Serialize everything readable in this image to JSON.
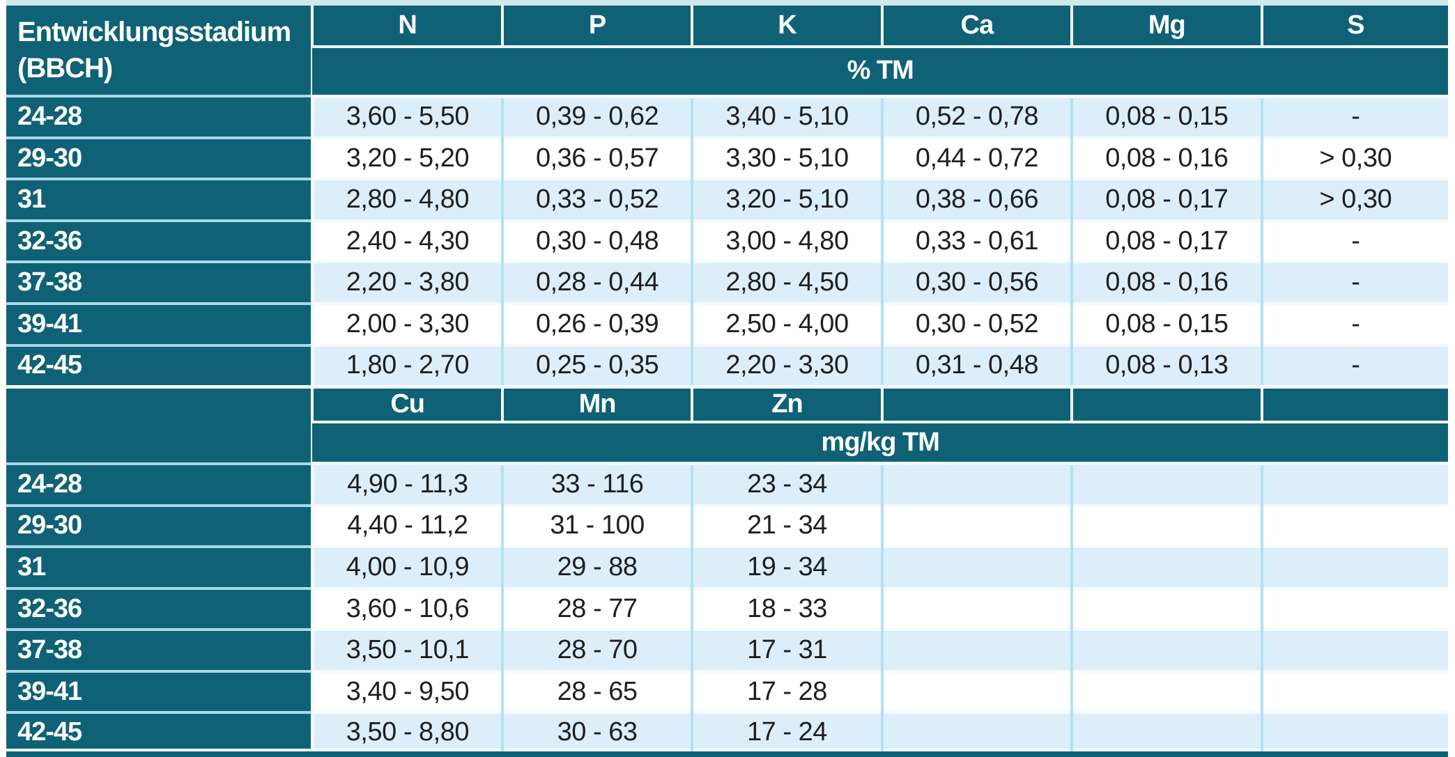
{
  "chart_data": {
    "type": "table",
    "row_label_header": "Entwicklungsstadium (BBCH)",
    "sections": [
      {
        "columns": [
          "N",
          "P",
          "K",
          "Ca",
          "Mg",
          "S"
        ],
        "unit": "% TM",
        "rows": [
          {
            "stage": "24-28",
            "values": [
              "3,60 - 5,50",
              "0,39 - 0,62",
              "3,40 - 5,10",
              "0,52 - 0,78",
              "0,08 - 0,15",
              "-"
            ]
          },
          {
            "stage": "29-30",
            "values": [
              "3,20 - 5,20",
              "0,36 - 0,57",
              "3,30 - 5,10",
              "0,44 - 0,72",
              "0,08 - 0,16",
              "> 0,30"
            ]
          },
          {
            "stage": "31",
            "values": [
              "2,80 - 4,80",
              "0,33 - 0,52",
              "3,20 - 5,10",
              "0,38 - 0,66",
              "0,08 - 0,17",
              "> 0,30"
            ]
          },
          {
            "stage": "32-36",
            "values": [
              "2,40 - 4,30",
              "0,30 - 0,48",
              "3,00 - 4,80",
              "0,33 - 0,61",
              "0,08 - 0,17",
              "-"
            ]
          },
          {
            "stage": "37-38",
            "values": [
              "2,20 - 3,80",
              "0,28 - 0,44",
              "2,80 - 4,50",
              "0,30 - 0,56",
              "0,08 - 0,16",
              "-"
            ]
          },
          {
            "stage": "39-41",
            "values": [
              "2,00 - 3,30",
              "0,26 - 0,39",
              "2,50 - 4,00",
              "0,30 - 0,52",
              "0,08 - 0,15",
              "-"
            ]
          },
          {
            "stage": "42-45",
            "values": [
              "1,80 - 2,70",
              "0,25 - 0,35",
              "2,20 - 3,30",
              "0,31 - 0,48",
              "0,08 - 0,13",
              "-"
            ]
          }
        ]
      },
      {
        "columns": [
          "Cu",
          "Mn",
          "Zn",
          "",
          "",
          ""
        ],
        "unit": "mg/kg TM",
        "rows": [
          {
            "stage": "24-28",
            "values": [
              "4,90 - 11,3",
              "33 - 116",
              "23 - 34",
              "",
              "",
              ""
            ]
          },
          {
            "stage": "29-30",
            "values": [
              "4,40 - 11,2",
              "31 - 100",
              "21 - 34",
              "",
              "",
              ""
            ]
          },
          {
            "stage": "31",
            "values": [
              "4,00 - 10,9",
              "29 - 88",
              "19 - 34",
              "",
              "",
              ""
            ]
          },
          {
            "stage": "32-36",
            "values": [
              "3,60 - 10,6",
              "28 - 77",
              "18 - 33",
              "",
              "",
              ""
            ]
          },
          {
            "stage": "37-38",
            "values": [
              "3,50 - 10,1",
              "28 - 70",
              "17 - 31",
              "",
              "",
              ""
            ]
          },
          {
            "stage": "39-41",
            "values": [
              "3,40 - 9,50",
              "28 - 65",
              "17 - 28",
              "",
              "",
              ""
            ]
          },
          {
            "stage": "42-45",
            "values": [
              "3,50 - 8,80",
              "30 - 63",
              "17 - 24",
              "",
              "",
              ""
            ]
          }
        ]
      }
    ]
  },
  "colors": {
    "header_teal": "#0f6276",
    "row_stripe": "#dceef9",
    "row_plain": "#ffffff",
    "grid_vertical": "#b5e1f0",
    "grid_horizontal": "#f2fafd",
    "text_dark": "#1f1f1f",
    "text_light": "#ffffff",
    "top_border": "#cfe8ec"
  }
}
